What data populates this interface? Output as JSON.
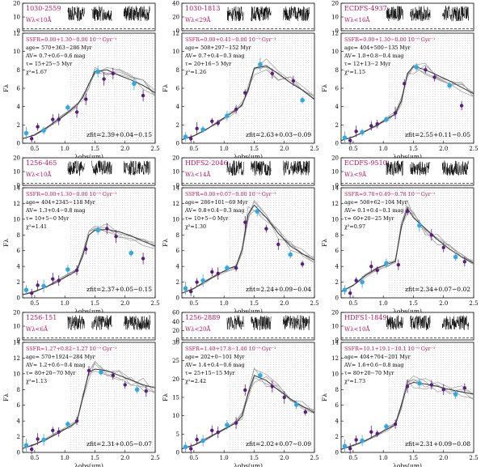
{
  "figure": {
    "xlabel": "λobs(μm)",
    "ylabel": "Fλ"
  },
  "chart_data": [
    {
      "type": "line",
      "id": "1030-2559",
      "ew_label": "Wλ<10Å",
      "top_ylim": [
        0,
        20
      ],
      "top_yticks": [
        0,
        10,
        20
      ],
      "main_ylim": [
        0,
        12
      ],
      "main_yticks": [
        0,
        2,
        4,
        6,
        8,
        10,
        12
      ],
      "xlim": [
        0.3,
        2.5
      ],
      "xticks": [
        0.5,
        1.0,
        1.5,
        2.0,
        2.5
      ],
      "params": {
        "ssfr": "SSFR=0.00+1.30−0.00 10⁻⁹ Gyr⁻¹",
        "age": "age= 570+363−286 Myr",
        "av": "AV= 0.7+0.6−0.6 mag",
        "tau": "τ= 15+25−5 Myr",
        "chi2": "χ²=1.67"
      },
      "zfit": "zfit=2.39+0.04−0.15",
      "photometry": {
        "x": [
          0.36,
          0.45,
          0.55,
          0.65,
          0.8,
          0.9,
          1.05,
          1.2,
          1.35,
          1.55,
          1.65,
          1.8,
          2.15,
          2.3
        ],
        "y": [
          1.1,
          0.5,
          1.8,
          1.4,
          2.6,
          2.6,
          3.9,
          3.4,
          4.8,
          7.8,
          7.0,
          7.6,
          6.5,
          5.2
        ]
      },
      "model": {
        "x": [
          0.3,
          0.5,
          0.7,
          0.9,
          1.1,
          1.2,
          1.3,
          1.4,
          1.5,
          1.7,
          1.9,
          2.1,
          2.3,
          2.5
        ],
        "y": [
          0.5,
          0.9,
          1.7,
          2.6,
          3.6,
          4.2,
          5.0,
          6.5,
          7.8,
          8.0,
          7.4,
          6.9,
          6.3,
          5.5
        ]
      }
    },
    {
      "type": "line",
      "id": "1030-1813",
      "ew_label": "Wλ<29Å",
      "top_ylim": [
        0,
        40
      ],
      "top_yticks": [
        0,
        20,
        40
      ],
      "main_ylim": [
        0,
        12
      ],
      "main_yticks": [
        0,
        2,
        4,
        6,
        8,
        10,
        12
      ],
      "xlim": [
        0.3,
        2.5
      ],
      "xticks": [
        0.5,
        1.0,
        1.5,
        2.0,
        2.5
      ],
      "params": {
        "ssfr": "SSFR=0.00+0.41−0.00 10⁻⁹ Gyr⁻¹",
        "age": "age= 508+297−152 Myr",
        "av": "AV= 0.7+0.4−0.3 mag",
        "tau": "τ= 20+16−5 Myr",
        "chi2": "χ²=1.26"
      },
      "zfit": "zfit=2.63+0.03−0.09",
      "photometry": {
        "x": [
          0.36,
          0.45,
          0.55,
          0.65,
          0.8,
          0.9,
          1.05,
          1.2,
          1.35,
          1.6,
          1.8,
          2.15,
          2.3
        ],
        "y": [
          0.7,
          0.5,
          1.6,
          1.5,
          2.4,
          2.2,
          3.0,
          3.7,
          5.5,
          8.6,
          7.6,
          6.8,
          4.7
        ]
      },
      "model": {
        "x": [
          0.3,
          0.5,
          0.7,
          0.9,
          1.1,
          1.2,
          1.3,
          1.4,
          1.5,
          1.7,
          1.9,
          2.1,
          2.3,
          2.5
        ],
        "y": [
          0.4,
          0.8,
          1.5,
          2.3,
          3.2,
          3.6,
          4.2,
          5.8,
          8.2,
          8.4,
          7.6,
          6.6,
          5.8,
          4.8
        ]
      }
    },
    {
      "type": "line",
      "id": "ECDFS-4937",
      "ew_label": "Wλ<16Å",
      "top_ylim": [
        0,
        20
      ],
      "top_yticks": [
        0,
        10,
        20
      ],
      "main_ylim": [
        0,
        12
      ],
      "main_yticks": [
        0,
        2,
        4,
        6,
        8,
        10,
        12
      ],
      "xlim": [
        0.3,
        2.5
      ],
      "xticks": [
        0.5,
        1.0,
        1.5,
        2.0,
        2.5
      ],
      "params": {
        "ssfr": "SSFR=0.00+1.30−0.00 10⁻⁹ Gyr⁻¹",
        "age": "age= 404+500−135 Myr",
        "av": "AV= 1.0+0.8−0.4 mag",
        "tau": "τ= 12+13−2 Myr",
        "chi2": "χ²=1.15"
      },
      "zfit": "zfit=2.55+0.11−0.05",
      "photometry": {
        "x": [
          0.36,
          0.45,
          0.55,
          0.65,
          0.8,
          0.9,
          1.05,
          1.2,
          1.35,
          1.55,
          1.7,
          1.85,
          2.1,
          2.3
        ],
        "y": [
          0.6,
          0.3,
          1.3,
          1.2,
          1.9,
          2.1,
          2.6,
          3.3,
          6.5,
          8.3,
          8.0,
          7.2,
          6.3,
          4.1
        ]
      },
      "model": {
        "x": [
          0.3,
          0.5,
          0.7,
          0.9,
          1.1,
          1.2,
          1.3,
          1.4,
          1.5,
          1.7,
          1.9,
          2.1,
          2.3,
          2.5
        ],
        "y": [
          0.3,
          0.7,
          1.3,
          2.0,
          2.8,
          3.2,
          4.6,
          7.6,
          8.4,
          8.0,
          7.4,
          6.8,
          6.1,
          5.4
        ]
      }
    },
    {
      "type": "line",
      "id": "1256-465",
      "ew_label": "Wλ<10Å",
      "top_ylim": [
        0,
        20
      ],
      "top_yticks": [
        0,
        10,
        20
      ],
      "main_ylim": [
        0,
        14
      ],
      "main_yticks": [
        0,
        2,
        4,
        6,
        8,
        10,
        12,
        14
      ],
      "xlim": [
        0.3,
        2.5
      ],
      "xticks": [
        0.5,
        1.0,
        1.5,
        2.0,
        2.5
      ],
      "params": {
        "ssfr": "SSFR=0.00+1.30−0.00 10⁻⁹ Gyr⁻¹",
        "age": "age= 404+2345−118 Myr",
        "av": "AV= 1.3+0.4−0.8 mag",
        "tau": "τ= 10+5−0 Myr",
        "chi2": "χ²=1.41"
      },
      "zfit": "zfit=2.37+0.05−0.15",
      "photometry": {
        "x": [
          0.36,
          0.45,
          0.55,
          0.65,
          0.8,
          0.9,
          1.05,
          1.2,
          1.35,
          1.55,
          1.7,
          1.85,
          2.1,
          2.3
        ],
        "y": [
          1.0,
          0.6,
          1.6,
          1.5,
          2.4,
          2.2,
          3.6,
          3.5,
          6.2,
          8.6,
          8.8,
          7.8,
          5.7,
          5.0
        ]
      },
      "model": {
        "x": [
          0.3,
          0.5,
          0.7,
          0.9,
          1.1,
          1.2,
          1.3,
          1.4,
          1.5,
          1.7,
          1.9,
          2.1,
          2.3,
          2.5
        ],
        "y": [
          0.4,
          0.8,
          1.4,
          2.2,
          3.0,
          3.5,
          5.5,
          8.0,
          8.6,
          8.7,
          8.4,
          7.9,
          7.2,
          6.6
        ]
      }
    },
    {
      "type": "line",
      "id": "HDFS2-2046",
      "ew_label": "Wλ<14Å",
      "top_ylim": [
        0,
        20
      ],
      "top_yticks": [
        0,
        10,
        20
      ],
      "main_ylim": [
        0,
        14
      ],
      "main_yticks": [
        0,
        2,
        4,
        6,
        8,
        10,
        12,
        14
      ],
      "xlim": [
        0.3,
        2.5
      ],
      "xticks": [
        0.5,
        1.0,
        1.5,
        2.0,
        2.5
      ],
      "params": {
        "ssfr": "SSFR=0.00+0.07−0.00 10⁻⁹ Gyr⁻¹",
        "age": "age= 286+101−69 Myr",
        "av": "AV= 0.8+0.4−0.3 mag",
        "tau": "τ= 10+5−0 Myr",
        "chi2": "χ²=1.30"
      },
      "zfit": "zfit=2.24+0.09−0.04",
      "photometry": {
        "x": [
          0.36,
          0.45,
          0.55,
          0.65,
          0.8,
          0.9,
          1.05,
          1.2,
          1.35,
          1.55,
          1.7,
          1.9,
          2.1,
          2.3
        ],
        "y": [
          1.2,
          0.8,
          2.0,
          2.2,
          3.3,
          3.1,
          3.8,
          3.8,
          9.6,
          11.0,
          8.8,
          6.8,
          5.5,
          4.3
        ]
      },
      "model": {
        "x": [
          0.3,
          0.5,
          0.7,
          0.9,
          1.1,
          1.2,
          1.3,
          1.4,
          1.5,
          1.7,
          1.9,
          2.1,
          2.3,
          2.5
        ],
        "y": [
          0.6,
          1.2,
          2.1,
          3.0,
          3.8,
          4.0,
          6.2,
          10.6,
          11.8,
          10.2,
          8.2,
          6.6,
          5.6,
          4.8
        ]
      }
    },
    {
      "type": "line",
      "id": "ECDFS-9510",
      "ew_label": "Wλ<9Å",
      "top_ylim": [
        0,
        20
      ],
      "top_yticks": [
        0,
        10,
        20
      ],
      "main_ylim": [
        0,
        14
      ],
      "main_yticks": [
        0,
        2,
        4,
        6,
        8,
        10,
        12,
        14
      ],
      "xlim": [
        0.3,
        2.5
      ],
      "xticks": [
        0.5,
        1.0,
        1.5,
        2.0,
        2.5
      ],
      "params": {
        "ssfr": "SSFR=0.78+0.49−0.78 10⁻⁹ Gyr⁻¹",
        "age": "age= 508+62−104 Myr",
        "av": "AV= 0.1+0.4−0.1 mag",
        "tau": "τ= 60+20−25 Myr",
        "chi2": "χ²=0.97"
      },
      "zfit": "zfit=2.34+0.07−0.02",
      "photometry": {
        "x": [
          0.36,
          0.45,
          0.55,
          0.65,
          0.8,
          0.9,
          1.05,
          1.25,
          1.4,
          1.6,
          1.8,
          2.0,
          2.2,
          2.35
        ],
        "y": [
          1.0,
          0.6,
          2.2,
          2.0,
          4.0,
          3.5,
          4.4,
          4.2,
          11.0,
          9.2,
          8.0,
          6.4,
          5.2,
          4.6
        ]
      },
      "model": {
        "x": [
          0.3,
          0.5,
          0.7,
          0.9,
          1.1,
          1.2,
          1.3,
          1.4,
          1.5,
          1.7,
          1.9,
          2.1,
          2.3,
          2.5
        ],
        "y": [
          0.8,
          1.6,
          2.8,
          3.8,
          4.4,
          4.6,
          9.0,
          11.4,
          10.2,
          8.8,
          7.4,
          6.2,
          5.2,
          4.4
        ]
      }
    },
    {
      "type": "line",
      "id": "1256-151",
      "ew_label": "Wλ<6Å",
      "top_ylim": [
        0,
        20
      ],
      "top_yticks": [
        0,
        10,
        20
      ],
      "main_ylim": [
        0,
        14
      ],
      "main_yticks": [
        0,
        2,
        4,
        6,
        8,
        10,
        12,
        14
      ],
      "xlim": [
        0.3,
        2.5
      ],
      "xticks": [
        0.5,
        1.0,
        1.5,
        2.0,
        2.5
      ],
      "params": {
        "ssfr": "SSFR=1.27+0.82−1.27 10⁻⁹ Gyr⁻¹",
        "age": "age= 570+1924−284 Myr",
        "av": "AV= 1.2+0.6−0.4 mag",
        "tau": "τ= 80+20−70 Myr",
        "chi2": "χ²=1.13"
      },
      "zfit": "zfit=2.31+0.05−0.07",
      "photometry": {
        "x": [
          0.36,
          0.45,
          0.55,
          0.65,
          0.8,
          0.9,
          1.05,
          1.2,
          1.4,
          1.6,
          1.8,
          2.0,
          2.2,
          2.35
        ],
        "y": [
          0.9,
          0.4,
          1.7,
          1.6,
          2.8,
          2.6,
          3.6,
          4.0,
          10.4,
          10.2,
          9.8,
          8.6,
          8.0,
          7.8
        ]
      },
      "model": {
        "x": [
          0.3,
          0.5,
          0.7,
          0.9,
          1.1,
          1.2,
          1.3,
          1.4,
          1.5,
          1.7,
          1.9,
          2.1,
          2.3,
          2.5
        ],
        "y": [
          0.5,
          1.0,
          1.7,
          2.5,
          3.4,
          3.9,
          7.0,
          10.2,
          10.6,
          10.4,
          9.8,
          9.2,
          8.6,
          8.2
        ]
      }
    },
    {
      "type": "line",
      "id": "1256-2889",
      "ew_label": "Wλ<20Å",
      "top_ylim": [
        0,
        60
      ],
      "top_yticks": [
        0,
        20,
        40,
        60
      ],
      "main_ylim": [
        0,
        30
      ],
      "main_yticks": [
        0,
        5,
        10,
        15,
        20,
        25,
        30
      ],
      "xlim": [
        0.3,
        2.5
      ],
      "xticks": [
        0.5,
        1.0,
        1.5,
        2.0,
        2.5
      ],
      "params": {
        "ssfr": "SSFR=1.40+17.8−1.40 10⁻⁹ Gyr⁻¹",
        "age": "age= 202+0−101 Myr",
        "av": "AV= 1.4+0.4−0.6 mag",
        "tau": "τ= 25+15−15 Myr",
        "chi2": "χ²=2.42"
      },
      "zfit": "zfit=2.02+0.07−0.09",
      "photometry": {
        "x": [
          0.36,
          0.45,
          0.55,
          0.65,
          0.8,
          0.9,
          1.05,
          1.2,
          1.35,
          1.6,
          1.8,
          2.0,
          2.2,
          2.35
        ],
        "y": [
          1.5,
          1.0,
          3.5,
          3.2,
          6.0,
          5.5,
          7.5,
          8.0,
          17.0,
          21.0,
          18.0,
          15.0,
          13.0,
          11.0
        ]
      },
      "model": {
        "x": [
          0.3,
          0.5,
          0.7,
          0.9,
          1.1,
          1.2,
          1.3,
          1.4,
          1.5,
          1.7,
          1.9,
          2.1,
          2.3,
          2.5
        ],
        "y": [
          1.0,
          2.0,
          3.6,
          5.4,
          7.2,
          8.0,
          10.0,
          16.0,
          21.0,
          19.6,
          17.0,
          14.6,
          12.6,
          10.8
        ]
      }
    },
    {
      "type": "line",
      "id": "HDFS1-1849",
      "ew_label": "Wλ<10Å",
      "top_ylim": [
        0,
        20
      ],
      "top_yticks": [
        0,
        10,
        20
      ],
      "main_ylim": [
        0,
        14
      ],
      "main_yticks": [
        0,
        2,
        4,
        6,
        8,
        10,
        12,
        14
      ],
      "xlim": [
        0.3,
        2.5
      ],
      "xticks": [
        0.5,
        1.0,
        1.5,
        2.0,
        2.5
      ],
      "params": {
        "ssfr": "SSFR=10.1+19.1−10.1 10⁻⁹ Gyr⁻¹",
        "age": "age= 404+704−201 Myr",
        "av": "AV= 1.6+0.6−0.8 mag",
        "tau": "τ= 80+20−70 Myr",
        "chi2": "χ²=1.73"
      },
      "zfit": "zfit=2.31+0.09−0.08",
      "photometry": {
        "x": [
          0.36,
          0.45,
          0.55,
          0.65,
          0.8,
          0.9,
          1.05,
          1.2,
          1.4,
          1.6,
          1.8,
          2.0,
          2.2,
          2.35
        ],
        "y": [
          0.8,
          0.5,
          1.6,
          1.5,
          2.6,
          2.4,
          3.3,
          3.6,
          8.4,
          8.8,
          8.6,
          8.0,
          7.4,
          8.2
        ]
      },
      "model": {
        "x": [
          0.3,
          0.5,
          0.7,
          0.9,
          1.1,
          1.2,
          1.3,
          1.4,
          1.5,
          1.7,
          1.9,
          2.1,
          2.3,
          2.5
        ],
        "y": [
          0.4,
          0.9,
          1.5,
          2.3,
          3.1,
          3.5,
          6.0,
          8.6,
          8.9,
          8.7,
          8.4,
          8.0,
          7.7,
          7.4
        ]
      }
    }
  ]
}
